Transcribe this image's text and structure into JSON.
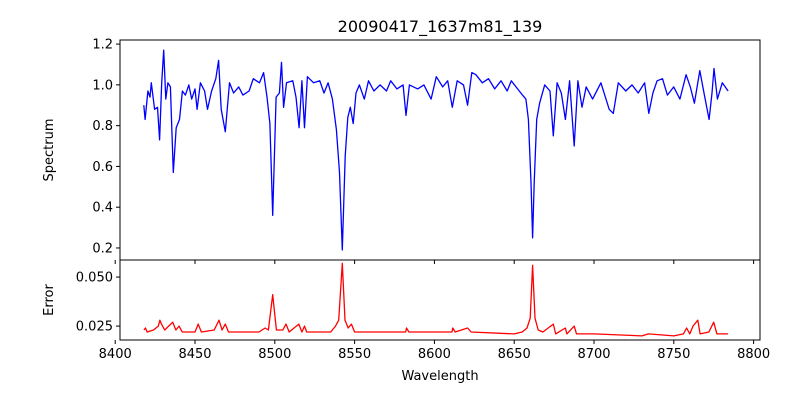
{
  "chart_data": [
    {
      "type": "line",
      "title": "20090417_1637m81_139",
      "xlabel": "",
      "ylabel": "Spectrum",
      "xlim": [
        8403,
        8804
      ],
      "ylim": [
        0.141,
        1.22
      ],
      "xticks": [
        8400,
        8450,
        8500,
        8550,
        8600,
        8650,
        8700,
        8750,
        8800
      ],
      "yticks": [
        0.2,
        0.4,
        0.6,
        0.8,
        1.0,
        1.2
      ],
      "ytick_labels": [
        "0.2",
        "0.4",
        "0.6",
        "0.8",
        "1.0",
        "1.2"
      ],
      "grid": false,
      "color": "#0000ff",
      "series": [
        {
          "name": "Spectrum",
          "x": [
            8417.9,
            8418.7,
            8420.5,
            8421.8,
            8422.6,
            8424.7,
            8426.5,
            8427.8,
            8429.1,
            8430.4,
            8431.7,
            8433.0,
            8434.6,
            8436.4,
            8438.2,
            8440.3,
            8442.1,
            8444.0,
            8446.1,
            8447.9,
            8450.0,
            8451.3,
            8453.4,
            8456.0,
            8457.8,
            8460.4,
            8463.0,
            8464.8,
            8466.4,
            8469.0,
            8471.6,
            8474.2,
            8477.4,
            8480.0,
            8483.9,
            8486.5,
            8490.4,
            8493.0,
            8495.1,
            8496.9,
            8498.7,
            8500.8,
            8502.9,
            8504.2,
            8505.5,
            8507.3,
            8511.3,
            8513.3,
            8515.2,
            8517.0,
            8518.6,
            8520.4,
            8524.3,
            8528.2,
            8530.8,
            8533.4,
            8536.1,
            8538.6,
            8540.5,
            8542.3,
            8544.1,
            8545.7,
            8547.3,
            8549.1,
            8550.9,
            8553.0,
            8556.1,
            8558.7,
            8562.1,
            8566.0,
            8570.0,
            8572.6,
            8576.5,
            8580.4,
            8582.2,
            8584.3,
            8589.5,
            8593.4,
            8597.9,
            8601.2,
            8605.2,
            8608.3,
            8611.2,
            8614.3,
            8618.2,
            8620.8,
            8623.4,
            8626.0,
            8630.0,
            8633.9,
            8637.8,
            8641.7,
            8645.6,
            8648.2,
            8652.1,
            8655.2,
            8657.3,
            8658.9,
            8660.5,
            8661.5,
            8662.5,
            8664.1,
            8665.9,
            8669.1,
            8672.4,
            8674.5,
            8676.9,
            8679.5,
            8682.1,
            8684.7,
            8687.6,
            8689.9,
            8692.5,
            8695.1,
            8699.1,
            8704.3,
            8709.5,
            8712.1,
            8715.2,
            8719.9,
            8723.8,
            8727.7,
            8731.7,
            8734.3,
            8736.9,
            8739.5,
            8742.9,
            8746.0,
            8749.9,
            8753.8,
            8757.7,
            8760.3,
            8762.9,
            8766.3,
            8768.9,
            8772.1,
            8773.9,
            8775.2,
            8777.3,
            8780.4,
            8784.0
          ],
          "y": [
            0.9,
            0.83,
            0.97,
            0.94,
            1.01,
            0.88,
            0.89,
            0.73,
            1.01,
            1.17,
            0.93,
            1.01,
            0.99,
            0.57,
            0.79,
            0.83,
            0.97,
            0.95,
            1.0,
            0.93,
            0.98,
            0.88,
            1.01,
            0.97,
            0.88,
            0.97,
            1.03,
            1.12,
            0.88,
            0.77,
            1.01,
            0.96,
            0.99,
            0.95,
            0.97,
            1.03,
            1.01,
            1.06,
            0.94,
            0.81,
            0.36,
            0.94,
            0.96,
            1.11,
            0.89,
            1.01,
            1.02,
            0.94,
            0.79,
            1.02,
            0.79,
            1.04,
            1.01,
            1.02,
            0.96,
            1.01,
            0.93,
            0.78,
            0.57,
            0.19,
            0.65,
            0.84,
            0.89,
            0.81,
            0.96,
            1.0,
            0.93,
            1.02,
            0.97,
            1.0,
            0.97,
            1.02,
            0.98,
            1.0,
            0.85,
            1.0,
            0.98,
            1.0,
            0.93,
            1.04,
            0.99,
            1.02,
            0.89,
            1.02,
            1.0,
            0.9,
            1.06,
            1.05,
            1.01,
            1.03,
            0.98,
            1.02,
            0.97,
            1.02,
            0.98,
            0.95,
            0.93,
            0.83,
            0.52,
            0.25,
            0.52,
            0.83,
            0.91,
            1.0,
            0.97,
            0.75,
            1.01,
            0.96,
            0.83,
            1.02,
            0.7,
            1.02,
            0.89,
            0.99,
            0.93,
            1.01,
            0.88,
            0.86,
            1.01,
            0.97,
            1.0,
            0.96,
            1.01,
            0.86,
            0.96,
            1.02,
            1.03,
            0.95,
            0.99,
            0.93,
            1.05,
            0.99,
            0.91,
            1.07,
            0.96,
            0.83,
            0.96,
            1.08,
            0.93,
            1.01,
            0.97
          ]
        }
      ]
    },
    {
      "type": "line",
      "xlabel": "Wavelength",
      "ylabel": "Error",
      "xlim": [
        8403,
        8804
      ],
      "ylim": [
        0.0179,
        0.0587
      ],
      "xticks": [
        8400,
        8450,
        8500,
        8550,
        8600,
        8650,
        8700,
        8750,
        8800
      ],
      "xtick_labels": [
        "8400",
        "8450",
        "8500",
        "8550",
        "8600",
        "8650",
        "8700",
        "8750",
        "8800"
      ],
      "yticks": [
        0.025,
        0.05
      ],
      "ytick_labels": [
        "0.025",
        "0.050"
      ],
      "grid": false,
      "color": "#ff0000",
      "series": [
        {
          "name": "Error",
          "x": [
            8418,
            8419,
            8420,
            8424,
            8427,
            8428,
            8429,
            8431,
            8436,
            8438,
            8440,
            8442,
            8450,
            8452,
            8454,
            8462,
            8465,
            8467,
            8469,
            8471,
            8490,
            8494,
            8496,
            8498.7,
            8501,
            8505,
            8507,
            8509,
            8515,
            8517,
            8518.6,
            8520,
            8535,
            8538,
            8540,
            8542.3,
            8544,
            8546,
            8548,
            8550,
            8582,
            8582.5,
            8584,
            8611,
            8611.5,
            8613,
            8620.8,
            8623,
            8650,
            8655,
            8658,
            8660,
            8661.5,
            8663,
            8665,
            8668,
            8674.5,
            8676,
            8682,
            8683,
            8687.6,
            8689,
            8700,
            8730,
            8734,
            8750,
            8756,
            8758,
            8760,
            8762,
            8765,
            8766.5,
            8772,
            8775,
            8777,
            8784
          ],
          "y": [
            0.023,
            0.024,
            0.022,
            0.023,
            0.025,
            0.028,
            0.026,
            0.023,
            0.027,
            0.023,
            0.025,
            0.022,
            0.022,
            0.026,
            0.022,
            0.023,
            0.028,
            0.023,
            0.026,
            0.022,
            0.022,
            0.024,
            0.023,
            0.041,
            0.023,
            0.023,
            0.026,
            0.022,
            0.026,
            0.022,
            0.025,
            0.022,
            0.022,
            0.025,
            0.028,
            0.057,
            0.028,
            0.024,
            0.026,
            0.022,
            0.022,
            0.024,
            0.022,
            0.022,
            0.024,
            0.022,
            0.024,
            0.022,
            0.021,
            0.022,
            0.024,
            0.029,
            0.056,
            0.029,
            0.023,
            0.022,
            0.026,
            0.021,
            0.024,
            0.021,
            0.025,
            0.021,
            0.021,
            0.02,
            0.021,
            0.02,
            0.021,
            0.024,
            0.021,
            0.025,
            0.028,
            0.021,
            0.022,
            0.027,
            0.021,
            0.021
          ]
        }
      ]
    }
  ]
}
